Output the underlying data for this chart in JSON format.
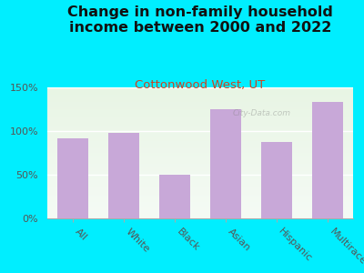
{
  "title": "Change in non-family household\nincome between 2000 and 2022",
  "subtitle": "Cottonwood West, UT",
  "categories": [
    "All",
    "White",
    "Black",
    "Asian",
    "Hispanic",
    "Multirace"
  ],
  "values": [
    92,
    98,
    50,
    125,
    87,
    133
  ],
  "bar_color": "#c8a8d8",
  "title_fontsize": 11.5,
  "subtitle_fontsize": 9.5,
  "subtitle_color": "#cc4422",
  "title_color": "#111111",
  "tick_label_color": "#555555",
  "background_color": "#00eeff",
  "plot_bg_top": "#e8f5e4",
  "plot_bg_bottom": "#f5fbf5",
  "ylim": [
    0,
    150
  ],
  "yticks": [
    0,
    50,
    100,
    150
  ],
  "yticklabels": [
    "0%",
    "50%",
    "100%",
    "150%"
  ],
  "xlabel_rotation": -45,
  "watermark": "City-Data.com"
}
